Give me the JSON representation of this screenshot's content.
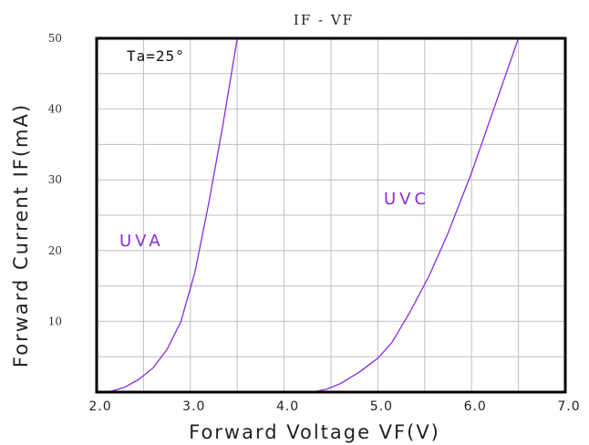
{
  "chart_data": {
    "type": "line",
    "title": "IF - VF",
    "xlabel": "Forward Voltage VF(V)",
    "ylabel": "Forward Current IF(mA)",
    "xlim": [
      2.0,
      7.0
    ],
    "ylim": [
      0,
      50
    ],
    "x_ticks": [
      "2.0",
      "3.0",
      "4.0",
      "5.0",
      "6.0",
      "7.0"
    ],
    "y_ticks": [
      "10",
      "20",
      "30",
      "40",
      "50"
    ],
    "grid": true,
    "annotation": "Ta=25°",
    "line_color": "#8a2be2",
    "series": [
      {
        "name": "UVA",
        "points": [
          [
            2.0,
            0
          ],
          [
            2.15,
            0.1
          ],
          [
            2.3,
            0.7
          ],
          [
            2.45,
            1.8
          ],
          [
            2.6,
            3.4
          ],
          [
            2.75,
            6.0
          ],
          [
            2.9,
            10.0
          ],
          [
            3.05,
            17.0
          ],
          [
            3.2,
            27.0
          ],
          [
            3.35,
            38.0
          ],
          [
            3.5,
            50.0
          ]
        ]
      },
      {
        "name": "UVC",
        "points": [
          [
            2.0,
            0
          ],
          [
            4.3,
            0
          ],
          [
            4.45,
            0.4
          ],
          [
            4.6,
            1.2
          ],
          [
            4.8,
            2.8
          ],
          [
            5.0,
            4.8
          ],
          [
            5.15,
            7.0
          ],
          [
            5.35,
            11.5
          ],
          [
            5.55,
            16.5
          ],
          [
            5.75,
            22.5
          ],
          [
            6.0,
            31.0
          ],
          [
            6.25,
            40.5
          ],
          [
            6.5,
            50.0
          ]
        ]
      }
    ]
  }
}
